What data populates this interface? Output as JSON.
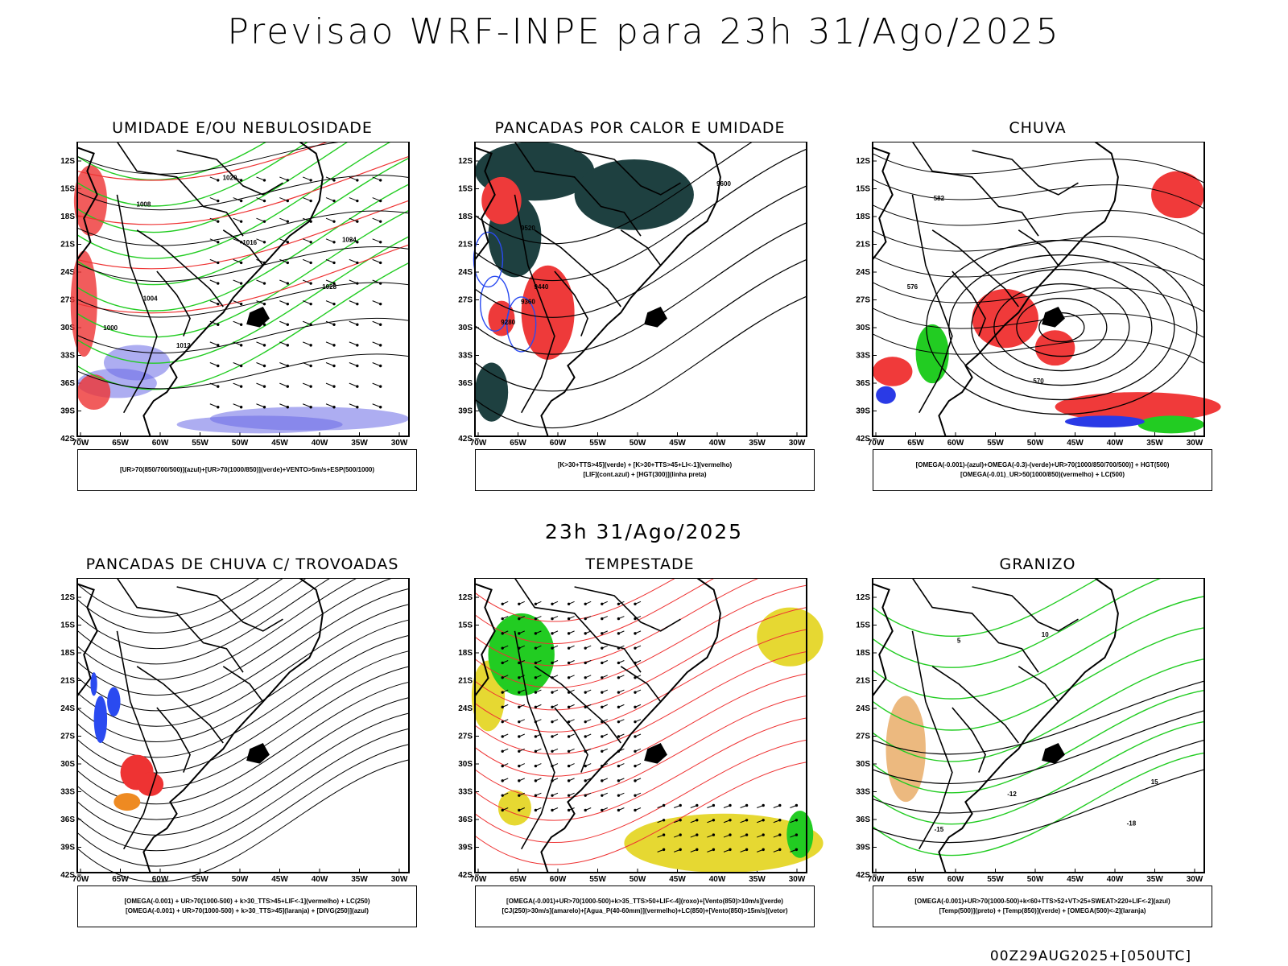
{
  "main_title": "Previsao WRF-INPE  para 23h 31/Ago/2025",
  "mid_title": "23h 31/Ago/2025",
  "footer": "00Z29AUG2025+[050UTC]",
  "axes": {
    "lat_labels": [
      "12S",
      "15S",
      "18S",
      "21S",
      "24S",
      "27S",
      "30S",
      "33S",
      "36S",
      "39S",
      "42S"
    ],
    "lon_labels": [
      "70W",
      "65W",
      "60W",
      "55W",
      "50W",
      "45W",
      "40W",
      "35W",
      "30W"
    ]
  },
  "panels": [
    {
      "title": "UMIDADE E/OU NEBULOSIDADE",
      "legend": [
        "[UR>70(850/700/500)](azul)+[UR>70(1000/850)](verde)+VENTO>5m/s+ESP(500/1000)"
      ],
      "contour_labels": [
        "1020",
        "1016",
        "1008",
        "1012",
        "1024",
        "1028",
        "1004",
        "1000"
      ],
      "colors": {
        "blue": "#6a6ae6",
        "green": "#22cc22",
        "red": "#ee3333"
      }
    },
    {
      "title": "PANCADAS POR CALOR E UMIDADE",
      "legend": [
        "[K>30+TTS>45](verde) + [K>30+TTS>45+LI<-1](vermelho)",
        "[LIF](cont.azul) + [HGT(300)](linha preta)"
      ],
      "contour_labels": [
        "9600",
        "9520",
        "9440",
        "9360",
        "9280"
      ],
      "colors": {
        "dark": "#1e4040",
        "red": "#ee3a3a",
        "blue": "#2a4af0"
      }
    },
    {
      "title": "CHUVA",
      "legend": [
        "[OMEGA(-0.001)-(azul)+OMEGA(-0.3)-(verde)+UR>70(1000/850/700/500)] + HGT(500)",
        "[OMEGA(-0.01)_UR>50(1000/850)(vermelho) + LC(500)"
      ],
      "contour_labels": [
        "582",
        "576",
        "570"
      ],
      "colors": {
        "red": "#f03a3a",
        "green": "#22cc22",
        "blue": "#2a3ae6"
      }
    },
    {
      "title": "PANCADAS DE CHUVA C/ TROVOADAS",
      "legend": [
        "[OMEGA(-0.001) + UR>70(1000-500) + k>30_TTS>45+LIF<-1](vermelho) + LC(250)",
        "[OMEGA(-0.001) + UR>70(1000-500) + k>30_TTS>45](laranja) + [DIVG(250)](azul)"
      ],
      "contour_labels": [],
      "colors": {
        "red": "#ee3333",
        "orange": "#ee8a22",
        "blue": "#2a4af0"
      }
    },
    {
      "title": "TEMPESTADE",
      "legend": [
        "[OMEGA(-0.001)+UR>70(1000-500)+k>35_TTS>50+LIF<-4](roxo)+[Vento(850)>10m/s](verde)",
        "[CJ(250)>30m/s](amarelo)+[Agua_P(40-60mm)](vermelho)+LC(850)+[Vento(850)>15m/s](vetor)"
      ],
      "contour_labels": [],
      "colors": {
        "yellow": "#e6d832",
        "green": "#22cc22",
        "red": "#ee3333"
      }
    },
    {
      "title": "GRANIZO",
      "legend": [
        "[OMEGA(-0.001)+UR>70(1000-500)+k<60+TTS>52+VT>25+SWEAT>220+LIF<-2](azul)",
        "[Temp(500)](preto) + [Temp(850)](verde) + [OMEGA(500)<-2](laranja)"
      ],
      "contour_labels": [
        "-12",
        "-15",
        "-18",
        "5",
        "10",
        "15"
      ],
      "colors": {
        "green": "#22cc22",
        "orange": "#e08a2a"
      }
    }
  ]
}
